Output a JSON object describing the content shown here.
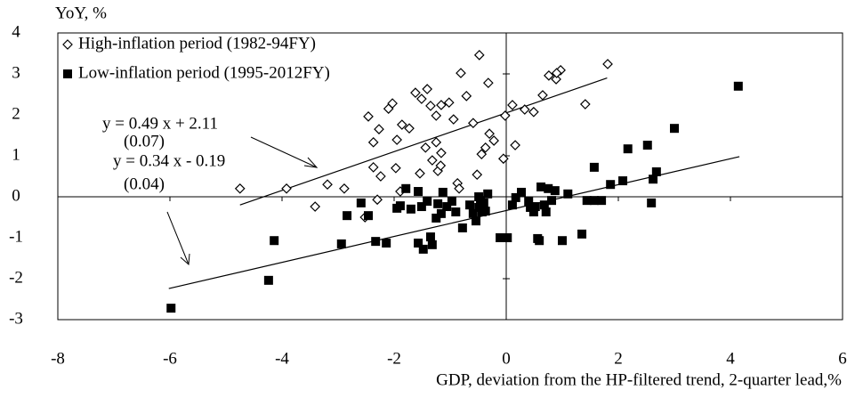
{
  "chart_data": {
    "type": "scatter",
    "y_label": "YoY, %",
    "x_label": "GDP, deviation  from the HP-filtered trend,  2-quarter lead,%",
    "xlim": [
      -8,
      6
    ],
    "xticks": [
      -8,
      -6,
      -4,
      -2,
      0,
      2,
      4,
      6
    ],
    "ylim": [
      -3,
      4
    ],
    "yticks": [
      -3,
      -2,
      -1,
      0,
      1,
      2,
      3,
      4
    ],
    "legend": "top-left",
    "series": [
      {
        "name": "High-inflation period (1982-94FY)",
        "marker": "diamond",
        "color": "#000000",
        "x": [
          -4.75,
          -3.92,
          -3.19,
          -3.41,
          -2.89,
          -2.52,
          -2.46,
          -2.37,
          -2.27,
          -2.37,
          -2.24,
          -2.3,
          -2.1,
          -2.03,
          -1.95,
          -1.97,
          -1.89,
          -1.86,
          -1.73,
          -1.62,
          -1.54,
          -1.51,
          -1.44,
          -1.41,
          -1.35,
          -1.32,
          -1.25,
          -1.25,
          -1.22,
          -1.17,
          -1.16,
          -1.16,
          -1.02,
          -0.94,
          -0.87,
          -0.84,
          -0.81,
          -0.71,
          -0.59,
          -0.52,
          -0.48,
          -0.44,
          -0.37,
          -0.32,
          -0.3,
          -0.22,
          -0.05,
          -0.02,
          0.11,
          0.16,
          0.33,
          0.49,
          0.65,
          0.76,
          0.89,
          0.97,
          0.9,
          1.41,
          1.81
        ],
        "values": [
          0.2,
          0.2,
          0.3,
          -0.24,
          0.2,
          -0.5,
          1.96,
          1.33,
          1.65,
          0.72,
          0.5,
          -0.07,
          2.15,
          2.28,
          1.39,
          0.7,
          0.13,
          1.76,
          1.67,
          2.54,
          0.57,
          2.39,
          1.2,
          2.63,
          2.22,
          0.89,
          1.98,
          1.33,
          0.63,
          0.76,
          1.07,
          2.24,
          2.3,
          1.89,
          0.33,
          0.2,
          3.02,
          2.46,
          1.8,
          0.54,
          3.46,
          1.04,
          1.2,
          2.78,
          1.54,
          1.37,
          0.93,
          1.98,
          2.24,
          1.26,
          2.13,
          2.07,
          2.48,
          2.96,
          2.87,
          3.09,
          3.02,
          2.26,
          3.24
        ]
      },
      {
        "name": "Low-inflation period (1995-2012FY)",
        "marker": "square",
        "color": "#000000",
        "x": [
          -5.98,
          -4.24,
          -4.14,
          -2.94,
          -2.84,
          -2.59,
          -2.46,
          -2.33,
          -2.14,
          -1.95,
          -1.79,
          -1.89,
          -1.7,
          -1.57,
          -1.51,
          -1.57,
          -1.48,
          -1.35,
          -1.32,
          -1.41,
          -1.25,
          -1.22,
          -1.16,
          -1.13,
          -1.06,
          -0.97,
          -0.9,
          -0.78,
          -0.65,
          -0.59,
          -0.54,
          -0.49,
          -0.46,
          -0.43,
          -0.37,
          -0.49,
          -0.4,
          -0.33,
          -0.11,
          0.02,
          0.11,
          0.17,
          0.27,
          0.4,
          0.43,
          0.49,
          0.52,
          0.56,
          0.59,
          0.62,
          0.68,
          0.71,
          0.75,
          0.81,
          0.87,
          1.0,
          1.1,
          1.35,
          1.44,
          1.57,
          1.57,
          1.7,
          1.86,
          2.08,
          2.17,
          2.52,
          2.59,
          2.62,
          2.68,
          3.0,
          4.14
        ],
        "values": [
          -2.72,
          -2.04,
          -1.07,
          -1.15,
          -0.46,
          -0.15,
          -0.46,
          -1.09,
          -1.13,
          -0.28,
          0.2,
          -0.22,
          -0.3,
          0.13,
          -0.24,
          -1.13,
          -1.28,
          -0.98,
          -1.17,
          -0.11,
          -0.52,
          -0.17,
          -0.41,
          0.11,
          -0.24,
          -0.11,
          -0.37,
          -0.76,
          -0.2,
          -0.41,
          -0.59,
          -0.26,
          -0.09,
          -0.37,
          -0.35,
          0,
          -0.15,
          0.07,
          -1,
          -1,
          -0.2,
          -0.02,
          0.11,
          -0.11,
          -0.26,
          -0.37,
          -0.24,
          -1.02,
          -1.07,
          0.24,
          -0.2,
          -0.37,
          0.2,
          -0.09,
          0.15,
          -1.07,
          0.07,
          -0.91,
          -0.09,
          0.72,
          -0.09,
          -0.09,
          0.3,
          0.39,
          1.17,
          1.26,
          -0.15,
          0.43,
          0.61,
          1.67,
          2.7
        ]
      }
    ],
    "fit_lines": [
      {
        "x": [
          -4.75,
          1.8
        ],
        "values": [
          -0.2,
          2.9
        ]
      },
      {
        "x": [
          -6.02,
          4.16
        ],
        "values": [
          -2.24,
          0.98
        ]
      }
    ],
    "annotations": [
      "y = 0.49 x + 2.11",
      "(0.07)",
      "y = 0.34 x - 0.19",
      "(0.04)"
    ]
  }
}
